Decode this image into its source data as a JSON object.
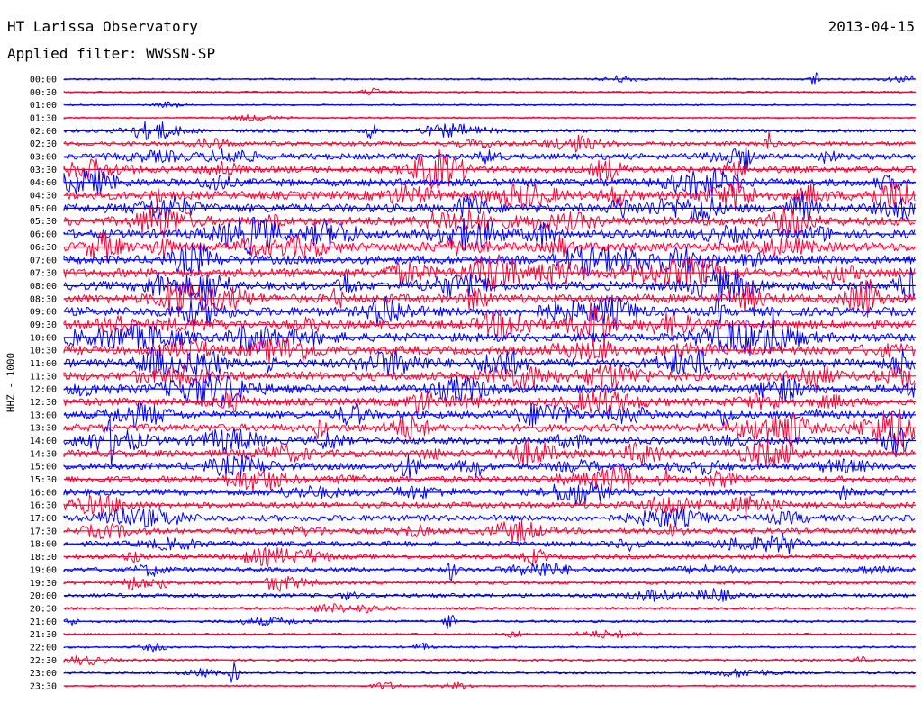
{
  "header": {
    "station": "HT Larissa Observatory",
    "date": "2013-04-15",
    "filter": "Applied filter: WWSSN-SP"
  },
  "channel_label": "HHZ - 1000",
  "colors": {
    "trace_even": "#0000ff",
    "trace_odd": "#ff0033",
    "background": "#ffffff",
    "text": "#000000"
  },
  "time_labels": [
    "00:00",
    "00:30",
    "01:00",
    "01:30",
    "02:00",
    "02:30",
    "03:00",
    "03:30",
    "04:00",
    "04:30",
    "05:00",
    "05:30",
    "06:00",
    "06:30",
    "07:00",
    "07:30",
    "08:00",
    "08:30",
    "09:00",
    "09:30",
    "10:00",
    "10:30",
    "11:00",
    "11:30",
    "12:00",
    "12:30",
    "13:00",
    "13:30",
    "14:00",
    "14:30",
    "15:00",
    "15:30",
    "16:00",
    "16:30",
    "17:00",
    "17:30",
    "18:00",
    "18:30",
    "19:00",
    "19:30",
    "20:00",
    "20:30",
    "21:00",
    "21:30",
    "22:00",
    "22:30",
    "23:00",
    "23:30"
  ],
  "activity_level": [
    0.1,
    0.08,
    0.05,
    0.08,
    0.3,
    0.45,
    0.65,
    0.75,
    0.85,
    0.95,
    1.0,
    1.0,
    1.0,
    1.0,
    1.0,
    1.0,
    1.0,
    1.0,
    1.0,
    1.0,
    1.0,
    1.0,
    1.0,
    1.0,
    0.9,
    0.85,
    0.85,
    0.85,
    0.8,
    0.8,
    0.75,
    0.75,
    0.7,
    0.65,
    0.65,
    0.6,
    0.55,
    0.45,
    0.45,
    0.35,
    0.4,
    0.2,
    0.18,
    0.15,
    0.12,
    0.15,
    0.12,
    0.1
  ]
}
